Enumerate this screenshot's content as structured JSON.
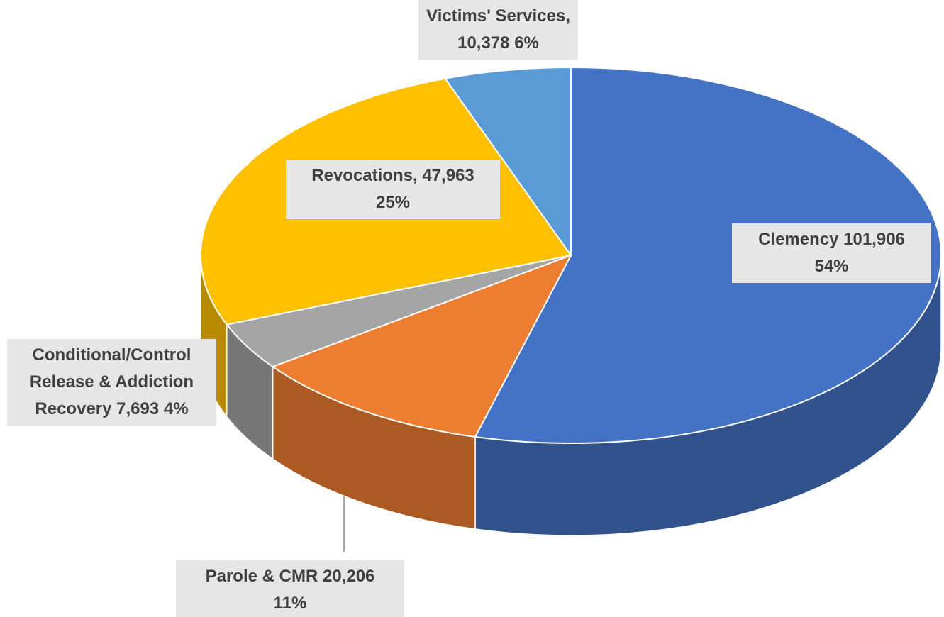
{
  "chart_data": {
    "type": "pie",
    "categories": [
      "Clemency",
      "Parole & CMR",
      "Conditional/Control Release & Addiction Recovery",
      "Revocations,",
      "Victims' Services,"
    ],
    "values": [
      101906,
      20206,
      7693,
      47963,
      10378
    ],
    "value_labels": [
      "101,906",
      "20,206",
      "7,693",
      "47,963",
      "10,378"
    ],
    "percentages": [
      54,
      11,
      4,
      25,
      6
    ],
    "percentage_labels": [
      "54%",
      "11%",
      "4%",
      "25%",
      "6%"
    ],
    "colors": [
      "#4472c4",
      "#ed7d31",
      "#a5a5a5",
      "#ffc000",
      "#5b9bd5"
    ]
  }
}
